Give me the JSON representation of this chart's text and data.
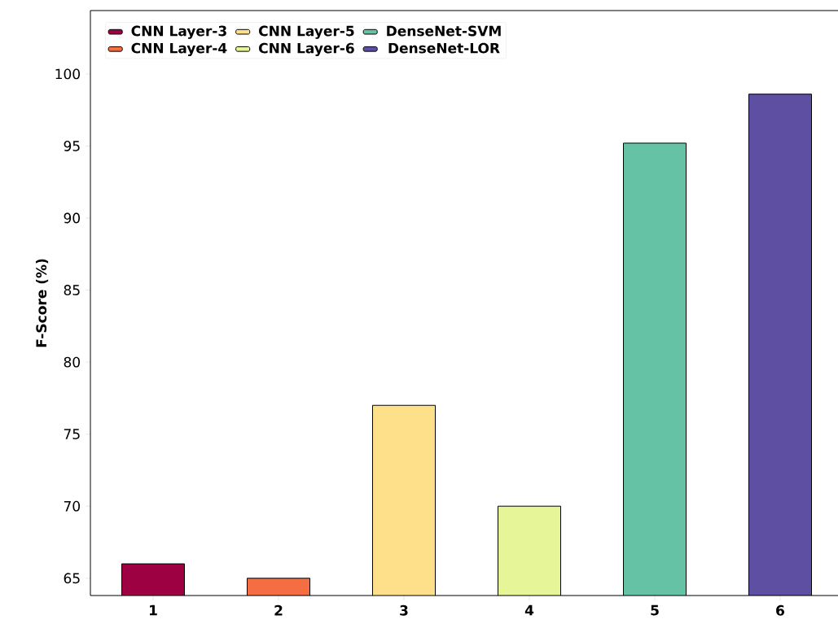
{
  "chart_data": {
    "type": "bar",
    "ylabel": "F-Score (%)",
    "categories": [
      "1",
      "2",
      "3",
      "4",
      "5",
      "6"
    ],
    "series": [
      {
        "name": "CNN Layer-3",
        "color": "#9e0142",
        "values": [
          66,
          null,
          null,
          null,
          null,
          null
        ]
      },
      {
        "name": "CNN Layer-4",
        "color": "#f46d43",
        "values": [
          null,
          65,
          null,
          null,
          null,
          null
        ]
      },
      {
        "name": "CNN Layer-5",
        "color": "#fee08b",
        "values": [
          null,
          null,
          77,
          null,
          null,
          null
        ]
      },
      {
        "name": "CNN Layer-6",
        "color": "#e6f598",
        "values": [
          null,
          null,
          null,
          70,
          null,
          null
        ]
      },
      {
        "name": "DenseNet-SVM",
        "color": "#66c2a5",
        "values": [
          null,
          null,
          null,
          null,
          95.2,
          null
        ]
      },
      {
        "name": "DenseNet-LOR",
        "color": "#5e4fa2",
        "values": [
          null,
          null,
          null,
          null,
          null,
          98.6
        ]
      }
    ],
    "ylim": [
      63.8,
      104.4
    ],
    "yticks": [
      65,
      70,
      75,
      80,
      85,
      90,
      95,
      100
    ],
    "legend": "top left",
    "grid": false
  }
}
